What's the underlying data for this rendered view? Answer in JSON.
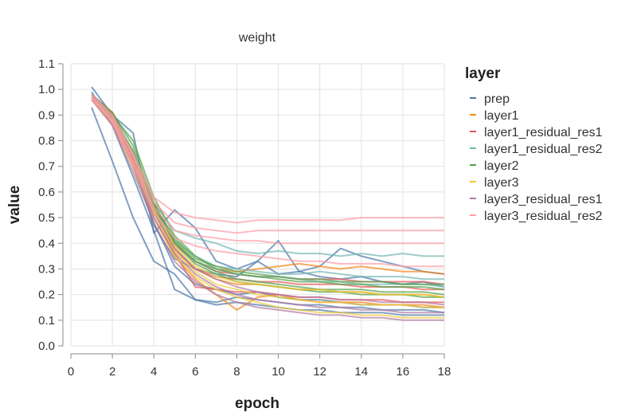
{
  "chart_data": {
    "type": "line",
    "title": "weight",
    "xlabel": "epoch",
    "ylabel": "value",
    "xlim": [
      0,
      18
    ],
    "ylim": [
      0.0,
      1.1
    ],
    "xticks": [
      "0",
      "2",
      "4",
      "6",
      "8",
      "10",
      "12",
      "14",
      "16",
      "18"
    ],
    "yticks": [
      "0.0",
      "0.1",
      "0.2",
      "0.3",
      "0.4",
      "0.5",
      "0.6",
      "0.7",
      "0.8",
      "0.9",
      "1.0",
      "1.1"
    ],
    "legend_title": "layer",
    "legend_position": "right",
    "grid": true,
    "x": [
      1,
      2,
      3,
      4,
      5,
      6,
      7,
      8,
      9,
      10,
      11,
      12,
      13,
      14,
      15,
      16,
      17,
      18
    ],
    "series": [
      {
        "name": "prep",
        "color": "#4c78a8",
        "lines": [
          [
            1.01,
            0.9,
            0.83,
            0.44,
            0.53,
            0.46,
            0.33,
            0.3,
            0.33,
            0.28,
            0.29,
            0.27,
            0.26,
            0.27,
            0.25,
            0.24,
            0.25,
            0.23
          ],
          [
            0.93,
            0.72,
            0.5,
            0.33,
            0.28,
            0.18,
            0.17,
            0.19,
            0.18,
            0.17,
            0.16,
            0.16,
            0.15,
            0.15,
            0.14,
            0.14,
            0.14,
            0.13
          ],
          [
            0.99,
            0.86,
            0.66,
            0.45,
            0.22,
            0.18,
            0.16,
            0.17,
            0.16,
            0.15,
            0.14,
            0.14,
            0.13,
            0.13,
            0.13,
            0.12,
            0.12,
            0.12
          ],
          [
            0.98,
            0.88,
            0.7,
            0.48,
            0.31,
            0.24,
            0.22,
            0.2,
            0.21,
            0.19,
            0.18,
            0.18,
            0.17,
            0.16,
            0.16,
            0.16,
            0.15,
            0.15
          ],
          [
            0.97,
            0.89,
            0.72,
            0.47,
            0.34,
            0.3,
            0.28,
            0.27,
            0.33,
            0.41,
            0.29,
            0.31,
            0.38,
            0.35,
            0.33,
            0.31,
            0.29,
            0.28
          ]
        ]
      },
      {
        "name": "layer1",
        "color": "#f58518",
        "lines": [
          [
            0.97,
            0.91,
            0.75,
            0.55,
            0.4,
            0.33,
            0.3,
            0.29,
            0.3,
            0.31,
            0.32,
            0.31,
            0.3,
            0.31,
            0.3,
            0.29,
            0.29,
            0.28
          ],
          [
            0.96,
            0.88,
            0.72,
            0.52,
            0.37,
            0.3,
            0.26,
            0.24,
            0.24,
            0.23,
            0.22,
            0.22,
            0.21,
            0.21,
            0.2,
            0.2,
            0.2,
            0.19
          ],
          [
            0.98,
            0.9,
            0.74,
            0.5,
            0.35,
            0.26,
            0.2,
            0.14,
            0.19,
            0.2,
            0.18,
            0.17,
            0.17,
            0.17,
            0.16,
            0.16,
            0.16,
            0.15
          ]
        ]
      },
      {
        "name": "layer1_residual_res1",
        "color": "#e45756",
        "lines": [
          [
            0.96,
            0.88,
            0.7,
            0.5,
            0.36,
            0.23,
            0.22,
            0.21,
            0.21,
            0.2,
            0.19,
            0.19,
            0.18,
            0.18,
            0.18,
            0.17,
            0.17,
            0.17
          ],
          [
            0.97,
            0.9,
            0.73,
            0.53,
            0.38,
            0.3,
            0.27,
            0.26,
            0.25,
            0.25,
            0.24,
            0.24,
            0.24,
            0.23,
            0.23,
            0.23,
            0.22,
            0.22
          ],
          [
            0.98,
            0.91,
            0.74,
            0.55,
            0.4,
            0.33,
            0.29,
            0.28,
            0.27,
            0.27,
            0.26,
            0.26,
            0.26,
            0.25,
            0.25,
            0.25,
            0.25,
            0.24
          ]
        ]
      },
      {
        "name": "layer1_residual_res2",
        "color": "#72b7b2",
        "lines": [
          [
            0.98,
            0.9,
            0.76,
            0.56,
            0.45,
            0.42,
            0.4,
            0.37,
            0.36,
            0.37,
            0.36,
            0.36,
            0.35,
            0.36,
            0.35,
            0.36,
            0.35,
            0.35
          ],
          [
            0.97,
            0.89,
            0.74,
            0.54,
            0.41,
            0.35,
            0.31,
            0.3,
            0.29,
            0.28,
            0.28,
            0.29,
            0.28,
            0.27,
            0.27,
            0.27,
            0.26,
            0.26
          ],
          [
            0.96,
            0.88,
            0.72,
            0.52,
            0.39,
            0.33,
            0.3,
            0.28,
            0.27,
            0.27,
            0.26,
            0.25,
            0.25,
            0.24,
            0.24,
            0.24,
            0.24,
            0.23
          ]
        ]
      },
      {
        "name": "layer2",
        "color": "#54a24b",
        "lines": [
          [
            0.97,
            0.9,
            0.8,
            0.58,
            0.43,
            0.35,
            0.3,
            0.28,
            0.27,
            0.26,
            0.25,
            0.25,
            0.24,
            0.24,
            0.23,
            0.23,
            0.23,
            0.22
          ],
          [
            0.98,
            0.91,
            0.78,
            0.56,
            0.41,
            0.33,
            0.29,
            0.26,
            0.25,
            0.24,
            0.23,
            0.22,
            0.22,
            0.22,
            0.21,
            0.21,
            0.21,
            0.2
          ],
          [
            0.96,
            0.89,
            0.76,
            0.54,
            0.4,
            0.32,
            0.28,
            0.25,
            0.24,
            0.23,
            0.22,
            0.21,
            0.21,
            0.2,
            0.2,
            0.2,
            0.19,
            0.19
          ],
          [
            0.97,
            0.88,
            0.75,
            0.55,
            0.42,
            0.34,
            0.31,
            0.29,
            0.28,
            0.27,
            0.26,
            0.26,
            0.25,
            0.25,
            0.25,
            0.24,
            0.24,
            0.24
          ]
        ]
      },
      {
        "name": "layer3",
        "color": "#eeca3b",
        "lines": [
          [
            0.96,
            0.86,
            0.7,
            0.5,
            0.35,
            0.27,
            0.22,
            0.19,
            0.17,
            0.15,
            0.14,
            0.13,
            0.13,
            0.12,
            0.12,
            0.11,
            0.11,
            0.11
          ],
          [
            0.97,
            0.88,
            0.72,
            0.52,
            0.37,
            0.29,
            0.24,
            0.22,
            0.2,
            0.19,
            0.18,
            0.17,
            0.17,
            0.16,
            0.16,
            0.16,
            0.15,
            0.15
          ],
          [
            0.98,
            0.89,
            0.74,
            0.53,
            0.39,
            0.31,
            0.27,
            0.25,
            0.24,
            0.23,
            0.22,
            0.22,
            0.21,
            0.21,
            0.2,
            0.2,
            0.2,
            0.19
          ]
        ]
      },
      {
        "name": "layer3_residual_res1",
        "color": "#b279a2",
        "lines": [
          [
            0.96,
            0.86,
            0.68,
            0.48,
            0.33,
            0.25,
            0.2,
            0.17,
            0.15,
            0.14,
            0.13,
            0.12,
            0.12,
            0.11,
            0.11,
            0.1,
            0.1,
            0.1
          ],
          [
            0.97,
            0.87,
            0.71,
            0.5,
            0.36,
            0.28,
            0.23,
            0.2,
            0.18,
            0.17,
            0.16,
            0.15,
            0.15,
            0.14,
            0.14,
            0.13,
            0.13,
            0.13
          ],
          [
            0.98,
            0.89,
            0.73,
            0.52,
            0.38,
            0.3,
            0.26,
            0.23,
            0.21,
            0.2,
            0.19,
            0.19,
            0.18,
            0.18,
            0.17,
            0.17,
            0.17,
            0.16
          ]
        ]
      },
      {
        "name": "layer3_residual_res2",
        "color": "#ff9da6",
        "lines": [
          [
            0.98,
            0.9,
            0.75,
            0.58,
            0.52,
            0.5,
            0.49,
            0.48,
            0.49,
            0.49,
            0.49,
            0.49,
            0.49,
            0.5,
            0.5,
            0.5,
            0.5,
            0.5
          ],
          [
            0.97,
            0.89,
            0.74,
            0.56,
            0.48,
            0.46,
            0.45,
            0.44,
            0.45,
            0.45,
            0.45,
            0.45,
            0.45,
            0.45,
            0.45,
            0.45,
            0.45,
            0.45
          ],
          [
            0.96,
            0.88,
            0.72,
            0.54,
            0.45,
            0.43,
            0.42,
            0.41,
            0.41,
            0.4,
            0.4,
            0.4,
            0.4,
            0.4,
            0.4,
            0.4,
            0.4,
            0.4
          ],
          [
            0.97,
            0.87,
            0.71,
            0.52,
            0.42,
            0.39,
            0.37,
            0.36,
            0.35,
            0.34,
            0.33,
            0.33,
            0.32,
            0.32,
            0.32,
            0.31,
            0.31,
            0.31
          ]
        ]
      }
    ]
  }
}
